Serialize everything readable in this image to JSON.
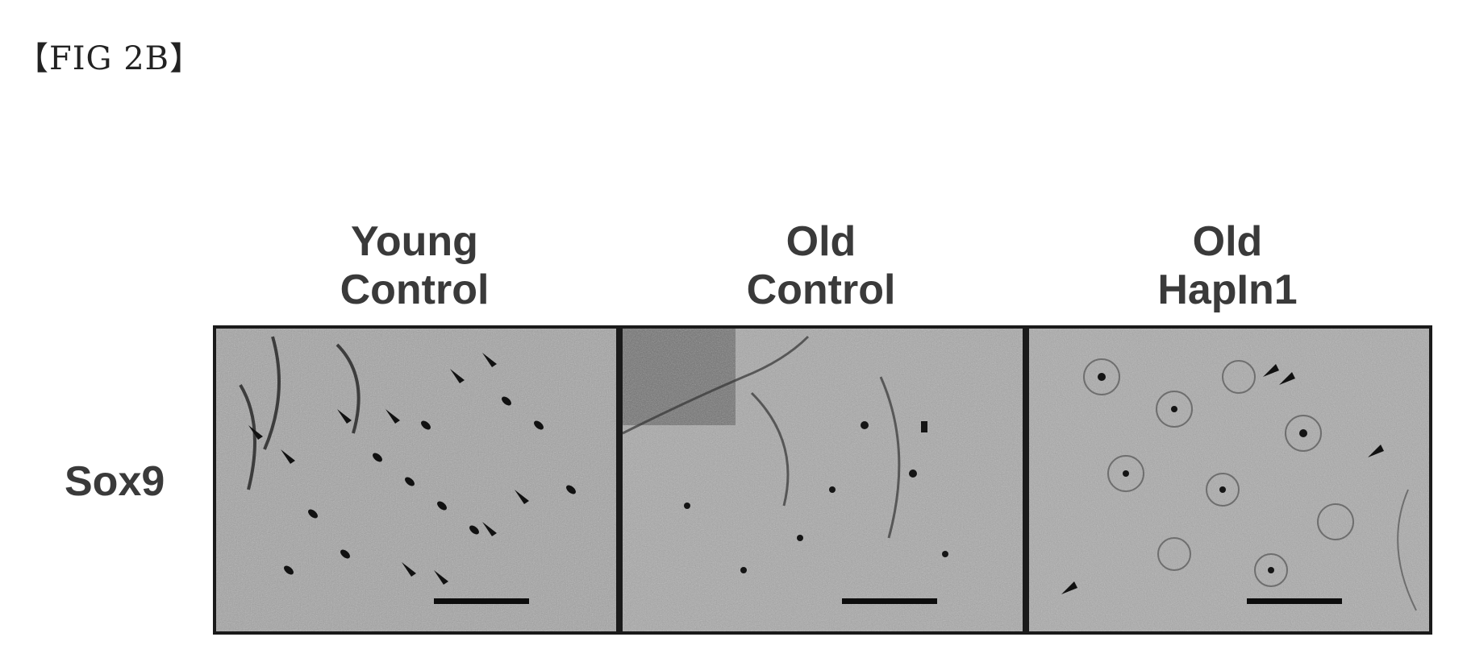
{
  "figure_title": "【FIG 2B】",
  "row_label": "Sox9",
  "panels": [
    {
      "line1": "Young",
      "line2": "Control"
    },
    {
      "line1": "Old",
      "line2": "Control"
    },
    {
      "line1": "Old",
      "line2": "HapIn1"
    }
  ]
}
